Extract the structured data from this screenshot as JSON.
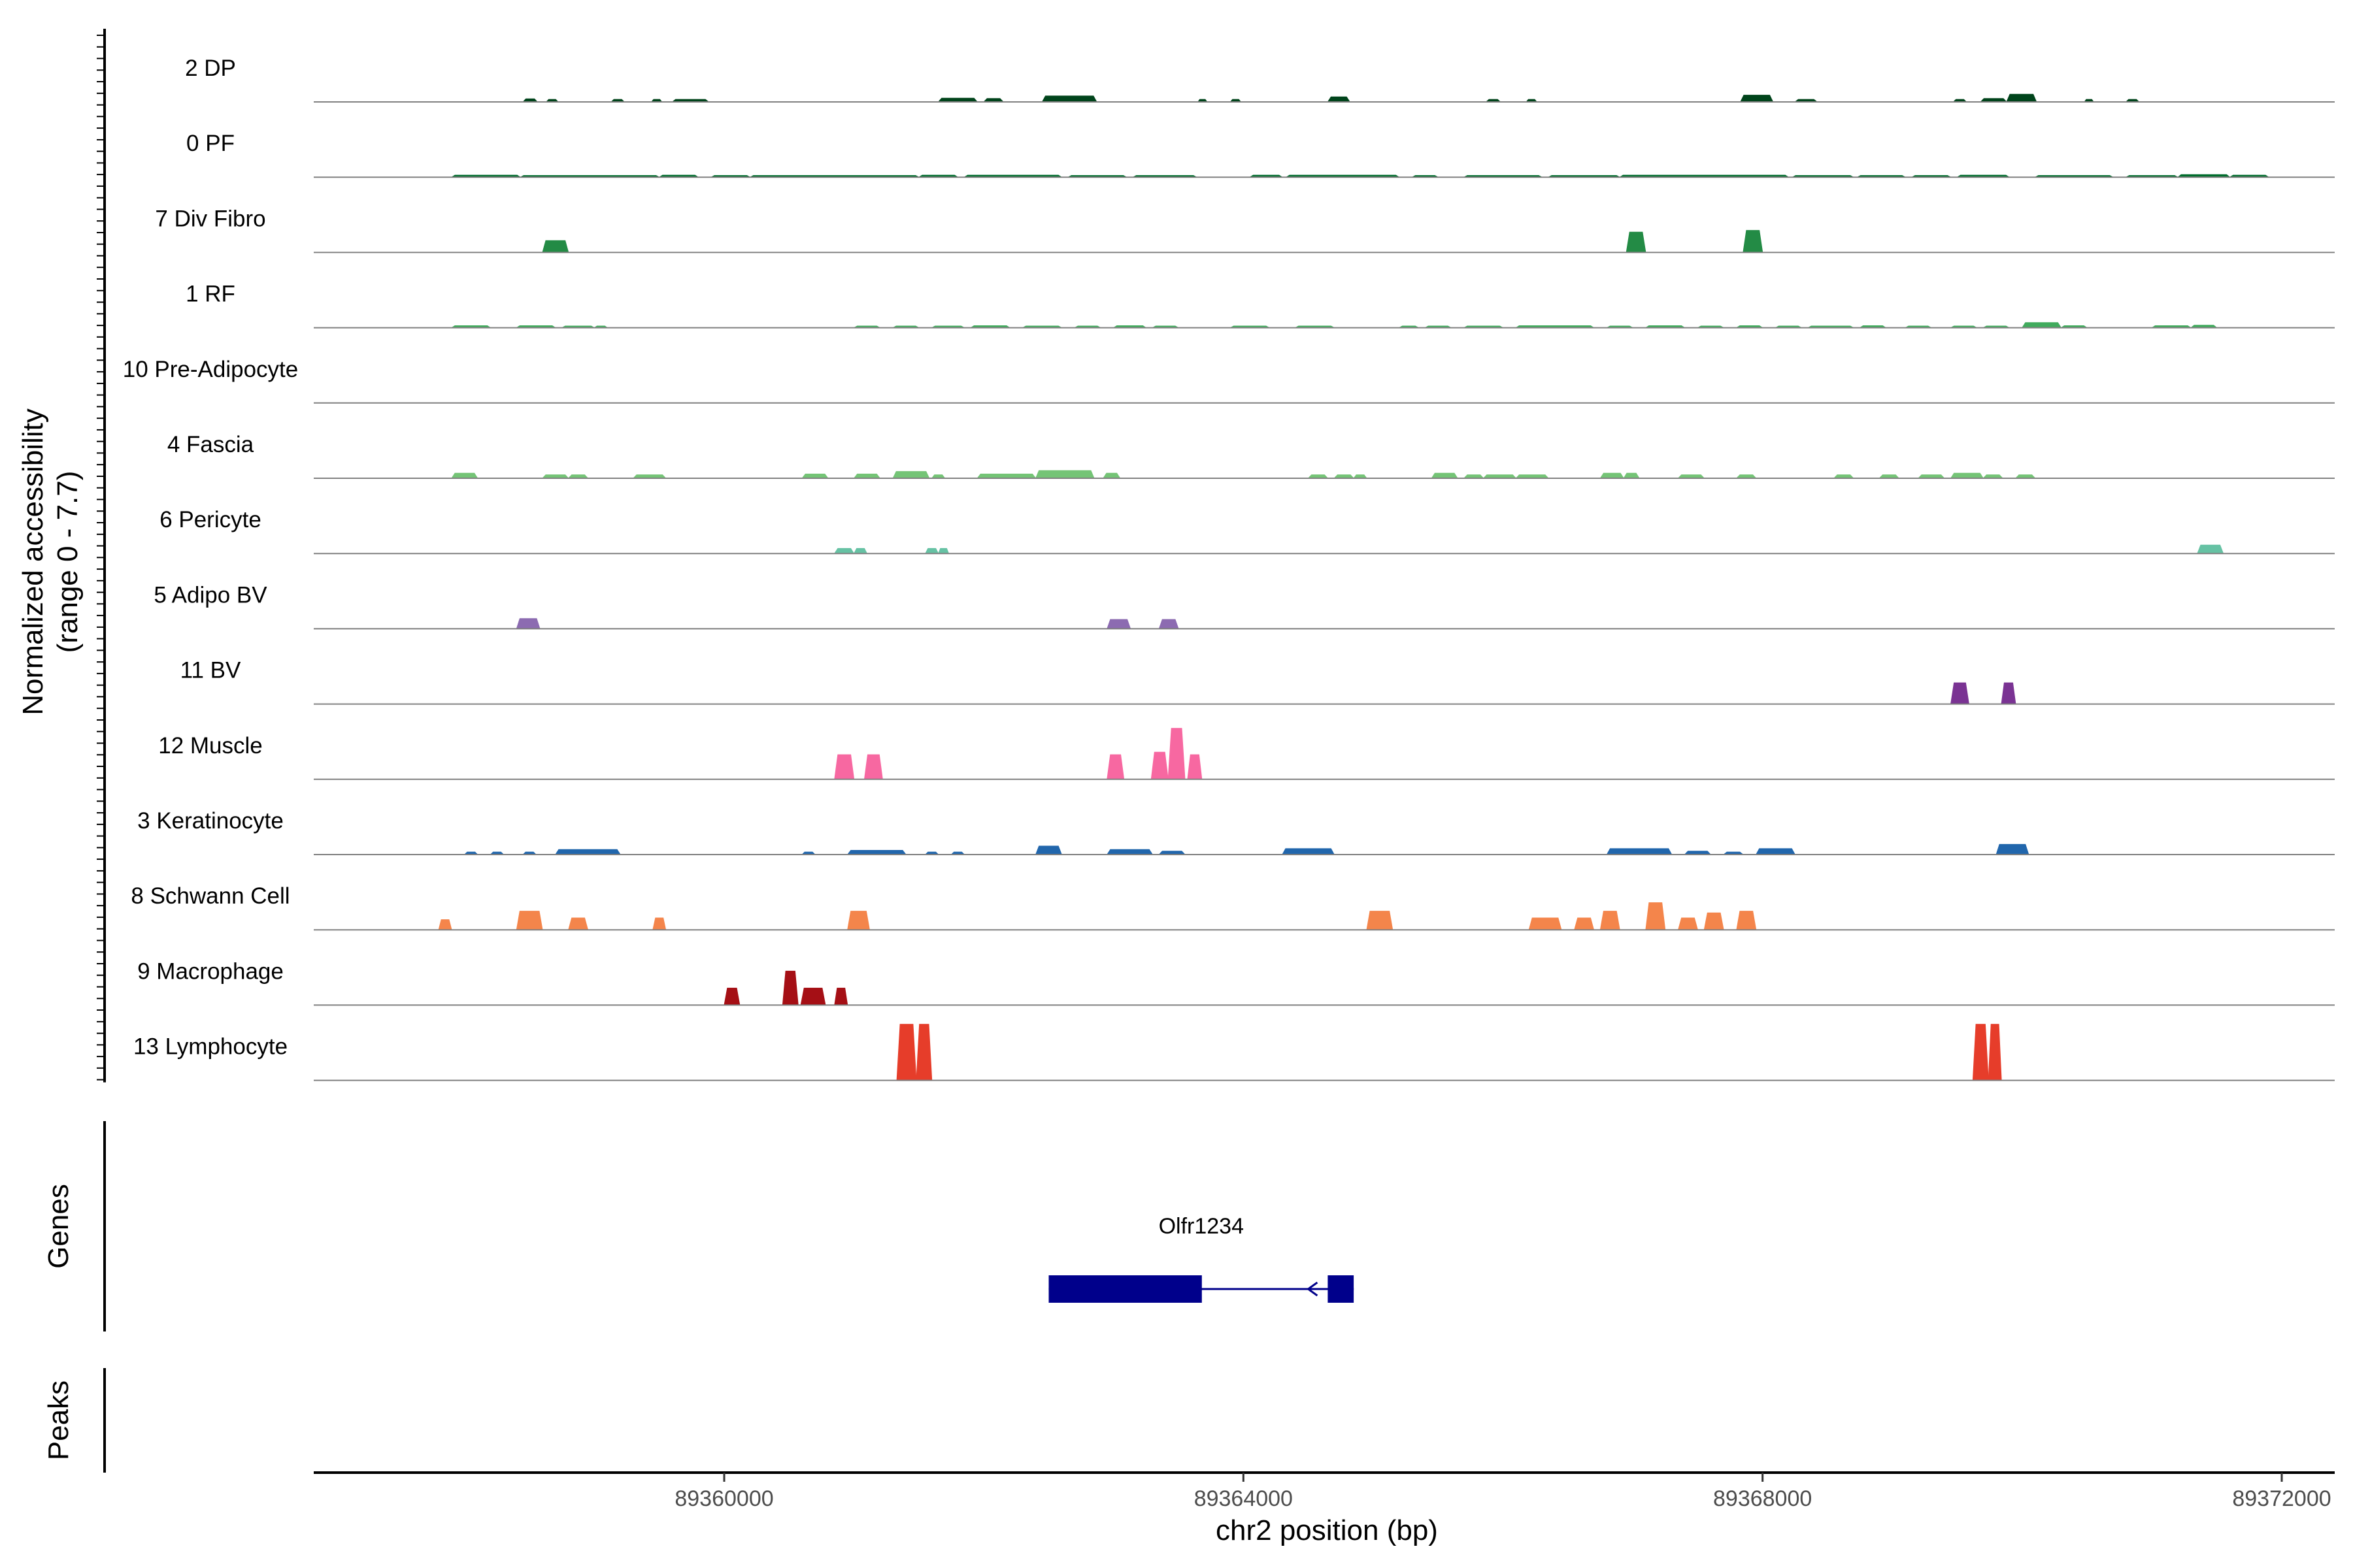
{
  "chart_data": {
    "type": "area",
    "region": {
      "chromosome": "chr2",
      "start": 89357600,
      "end": 89373000
    },
    "coverage_ylabel_line1": "Normalized accessibility",
    "coverage_ylabel_line2": "(range 0 - 7.7)",
    "y_range": [
      0,
      7.7
    ],
    "xlabel": "chr2 position (bp)",
    "x_ticks": [
      89360000,
      89364000,
      89368000,
      89372000
    ],
    "x_tick_labels": [
      "89360000",
      "89364000",
      "89368000",
      "89372000"
    ],
    "tracks": [
      {
        "label": "2 DP",
        "color": "#00441B",
        "peaks": [
          [
            89358450,
            89358560,
            0.18
          ],
          [
            89358630,
            89358720,
            0.15
          ],
          [
            89359130,
            89359230,
            0.15
          ],
          [
            89359440,
            89359520,
            0.15
          ],
          [
            89359600,
            89359880,
            0.15
          ],
          [
            89361650,
            89361950,
            0.22
          ],
          [
            89362000,
            89362150,
            0.2
          ],
          [
            89362450,
            89362870,
            0.35
          ],
          [
            89363650,
            89363720,
            0.15
          ],
          [
            89363900,
            89363980,
            0.15
          ],
          [
            89364650,
            89364820,
            0.3
          ],
          [
            89365870,
            89365980,
            0.15
          ],
          [
            89366180,
            89366260,
            0.15
          ],
          [
            89367830,
            89368080,
            0.4
          ],
          [
            89368250,
            89368420,
            0.15
          ],
          [
            89369470,
            89369570,
            0.15
          ],
          [
            89369680,
            89369880,
            0.2
          ],
          [
            89369880,
            89370110,
            0.45
          ],
          [
            89370480,
            89370550,
            0.15
          ],
          [
            89370800,
            89370900,
            0.15
          ]
        ]
      },
      {
        "label": "0 PF",
        "color": "#006D2C",
        "peaks": [
          [
            89357900,
            89358430,
            0.12
          ],
          [
            89358430,
            89359500,
            0.1
          ],
          [
            89359500,
            89359800,
            0.12
          ],
          [
            89359900,
            89360200,
            0.1
          ],
          [
            89360200,
            89361500,
            0.1
          ],
          [
            89361500,
            89361800,
            0.12
          ],
          [
            89361850,
            89362600,
            0.12
          ],
          [
            89362650,
            89363100,
            0.1
          ],
          [
            89363150,
            89363640,
            0.1
          ],
          [
            89364050,
            89364300,
            0.12
          ],
          [
            89364330,
            89365200,
            0.12
          ],
          [
            89365300,
            89365500,
            0.1
          ],
          [
            89365700,
            89366300,
            0.1
          ],
          [
            89366350,
            89366900,
            0.1
          ],
          [
            89366900,
            89368200,
            0.12
          ],
          [
            89368230,
            89368700,
            0.1
          ],
          [
            89368730,
            89369100,
            0.1
          ],
          [
            89369150,
            89369450,
            0.1
          ],
          [
            89369500,
            89369900,
            0.12
          ],
          [
            89370100,
            89370700,
            0.1
          ],
          [
            89370800,
            89371200,
            0.1
          ],
          [
            89371200,
            89371600,
            0.15
          ],
          [
            89371600,
            89371900,
            0.12
          ]
        ]
      },
      {
        "label": "7 Div Fibro",
        "color": "#238B45",
        "peaks": [
          [
            89358600,
            89358800,
            0.7
          ],
          [
            89366950,
            89367100,
            1.2
          ],
          [
            89367850,
            89368000,
            1.3
          ]
        ]
      },
      {
        "label": "1 RF",
        "color": "#41AB5D",
        "peaks": [
          [
            89357900,
            89358200,
            0.12
          ],
          [
            89358400,
            89358700,
            0.12
          ],
          [
            89358750,
            89359000,
            0.1
          ],
          [
            89359000,
            89359100,
            0.1
          ],
          [
            89361000,
            89361200,
            0.1
          ],
          [
            89361300,
            89361500,
            0.1
          ],
          [
            89361600,
            89361850,
            0.1
          ],
          [
            89361900,
            89362200,
            0.12
          ],
          [
            89362300,
            89362600,
            0.1
          ],
          [
            89362700,
            89362900,
            0.1
          ],
          [
            89363000,
            89363250,
            0.12
          ],
          [
            89363300,
            89363500,
            0.1
          ],
          [
            89363900,
            89364200,
            0.1
          ],
          [
            89364400,
            89364700,
            0.1
          ],
          [
            89365200,
            89365350,
            0.1
          ],
          [
            89365400,
            89365600,
            0.1
          ],
          [
            89365700,
            89366000,
            0.1
          ],
          [
            89366100,
            89366700,
            0.12
          ],
          [
            89366800,
            89367000,
            0.1
          ],
          [
            89367100,
            89367400,
            0.12
          ],
          [
            89367500,
            89367700,
            0.1
          ],
          [
            89367800,
            89368000,
            0.12
          ],
          [
            89368100,
            89368300,
            0.1
          ],
          [
            89368350,
            89368700,
            0.1
          ],
          [
            89368750,
            89368950,
            0.12
          ],
          [
            89369100,
            89369300,
            0.1
          ],
          [
            89369450,
            89369650,
            0.1
          ],
          [
            89369700,
            89369900,
            0.1
          ],
          [
            89370000,
            89370300,
            0.3
          ],
          [
            89370300,
            89370500,
            0.12
          ],
          [
            89371000,
            89371300,
            0.12
          ],
          [
            89371300,
            89371500,
            0.15
          ]
        ]
      },
      {
        "label": "10 Pre-Adipocyte",
        "color": "#74C476",
        "peaks": []
      },
      {
        "label": "4 Fascia",
        "color": "#74C476",
        "peaks": [
          [
            89357900,
            89358100,
            0.3
          ],
          [
            89358600,
            89358800,
            0.2
          ],
          [
            89358800,
            89358950,
            0.2
          ],
          [
            89359300,
            89359550,
            0.2
          ],
          [
            89360600,
            89360800,
            0.25
          ],
          [
            89361000,
            89361200,
            0.25
          ],
          [
            89361300,
            89361580,
            0.4
          ],
          [
            89361600,
            89361700,
            0.2
          ],
          [
            89361950,
            89362200,
            0.25
          ],
          [
            89362150,
            89362400,
            0.25
          ],
          [
            89362400,
            89362850,
            0.45
          ],
          [
            89362920,
            89363050,
            0.3
          ],
          [
            89364500,
            89364650,
            0.2
          ],
          [
            89364700,
            89364850,
            0.2
          ],
          [
            89364850,
            89364950,
            0.2
          ],
          [
            89365450,
            89365650,
            0.3
          ],
          [
            89365700,
            89365850,
            0.2
          ],
          [
            89365850,
            89366100,
            0.2
          ],
          [
            89366100,
            89366350,
            0.2
          ],
          [
            89366750,
            89366930,
            0.3
          ],
          [
            89366930,
            89367050,
            0.3
          ],
          [
            89367350,
            89367550,
            0.2
          ],
          [
            89367800,
            89367950,
            0.2
          ],
          [
            89368550,
            89368700,
            0.2
          ],
          [
            89368900,
            89369050,
            0.2
          ],
          [
            89369200,
            89369400,
            0.2
          ],
          [
            89369450,
            89369700,
            0.3
          ],
          [
            89369700,
            89369850,
            0.2
          ],
          [
            89369950,
            89370100,
            0.2
          ]
        ]
      },
      {
        "label": "6 Pericyte",
        "color": "#66C2A4",
        "peaks": [
          [
            89360850,
            89361000,
            0.3
          ],
          [
            89361000,
            89361100,
            0.3
          ],
          [
            89361550,
            89361650,
            0.3
          ],
          [
            89361650,
            89361730,
            0.3
          ],
          [
            89371350,
            89371550,
            0.5
          ]
        ]
      },
      {
        "label": "5 Adipo BV",
        "color": "#8C6BB1",
        "peaks": [
          [
            89358400,
            89358580,
            0.6
          ],
          [
            89362950,
            89363130,
            0.55
          ],
          [
            89363350,
            89363500,
            0.55
          ]
        ]
      },
      {
        "label": "11 BV",
        "color": "#7A3393",
        "peaks": [
          [
            89369450,
            89369590,
            1.25
          ],
          [
            89369840,
            89369950,
            1.25
          ]
        ]
      },
      {
        "label": "12 Muscle",
        "color": "#F768A1",
        "peaks": [
          [
            89360850,
            89361000,
            1.45
          ],
          [
            89361080,
            89361220,
            1.45
          ],
          [
            89362950,
            89363080,
            1.45
          ],
          [
            89363290,
            89363420,
            1.6
          ],
          [
            89363420,
            89363550,
            3.0
          ],
          [
            89363570,
            89363680,
            1.45
          ]
        ]
      },
      {
        "label": "3 Keratinocyte",
        "color": "#2166AC",
        "peaks": [
          [
            89358000,
            89358100,
            0.15
          ],
          [
            89358200,
            89358300,
            0.15
          ],
          [
            89358450,
            89358550,
            0.15
          ],
          [
            89358700,
            89359200,
            0.3
          ],
          [
            89360600,
            89360700,
            0.15
          ],
          [
            89360950,
            89361400,
            0.25
          ],
          [
            89361550,
            89361650,
            0.15
          ],
          [
            89361750,
            89361850,
            0.15
          ],
          [
            89362400,
            89362600,
            0.5
          ],
          [
            89362950,
            89363300,
            0.3
          ],
          [
            89363350,
            89363550,
            0.2
          ],
          [
            89364300,
            89364700,
            0.35
          ],
          [
            89366800,
            89367300,
            0.35
          ],
          [
            89367400,
            89367600,
            0.2
          ],
          [
            89367700,
            89367850,
            0.15
          ],
          [
            89367950,
            89368250,
            0.35
          ],
          [
            89369800,
            89370050,
            0.6
          ]
        ]
      },
      {
        "label": "8 Schwann Cell",
        "color": "#F4854B",
        "peaks": [
          [
            89357800,
            89357900,
            0.6
          ],
          [
            89358400,
            89358600,
            1.1
          ],
          [
            89358800,
            89358950,
            0.7
          ],
          [
            89359450,
            89359550,
            0.7
          ],
          [
            89360950,
            89361120,
            1.1
          ],
          [
            89364950,
            89365150,
            1.1
          ],
          [
            89366200,
            89366450,
            0.7
          ],
          [
            89366550,
            89366700,
            0.7
          ],
          [
            89366750,
            89366900,
            1.1
          ],
          [
            89367100,
            89367250,
            1.6
          ],
          [
            89367350,
            89367500,
            0.7
          ],
          [
            89367550,
            89367700,
            1.0
          ],
          [
            89367800,
            89367950,
            1.1
          ]
        ]
      },
      {
        "label": "9 Macrophage",
        "color": "#A50F15",
        "peaks": [
          [
            89360000,
            89360120,
            1.0
          ],
          [
            89360450,
            89360570,
            2.0
          ],
          [
            89360590,
            89360780,
            1.0
          ],
          [
            89360850,
            89360950,
            1.0
          ]
        ]
      },
      {
        "label": "13 Lymphocyte",
        "color": "#E63D2A",
        "peaks": [
          [
            89361330,
            89361480,
            3.3
          ],
          [
            89361480,
            89361600,
            3.3
          ],
          [
            89369620,
            89369740,
            3.3
          ],
          [
            89369740,
            89369840,
            3.3
          ]
        ]
      }
    ],
    "genes": [
      {
        "name": "Olfr1234",
        "strand": "-",
        "start": 89362500,
        "end": 89364850,
        "exons": [
          [
            89362500,
            89363680
          ],
          [
            89364650,
            89364850
          ]
        ],
        "color": "#00008B"
      }
    ],
    "side_titles": {
      "genes": "Genes",
      "peaks": "Peaks"
    },
    "colors": {
      "baseline": "#808080",
      "axis": "#000000"
    }
  }
}
